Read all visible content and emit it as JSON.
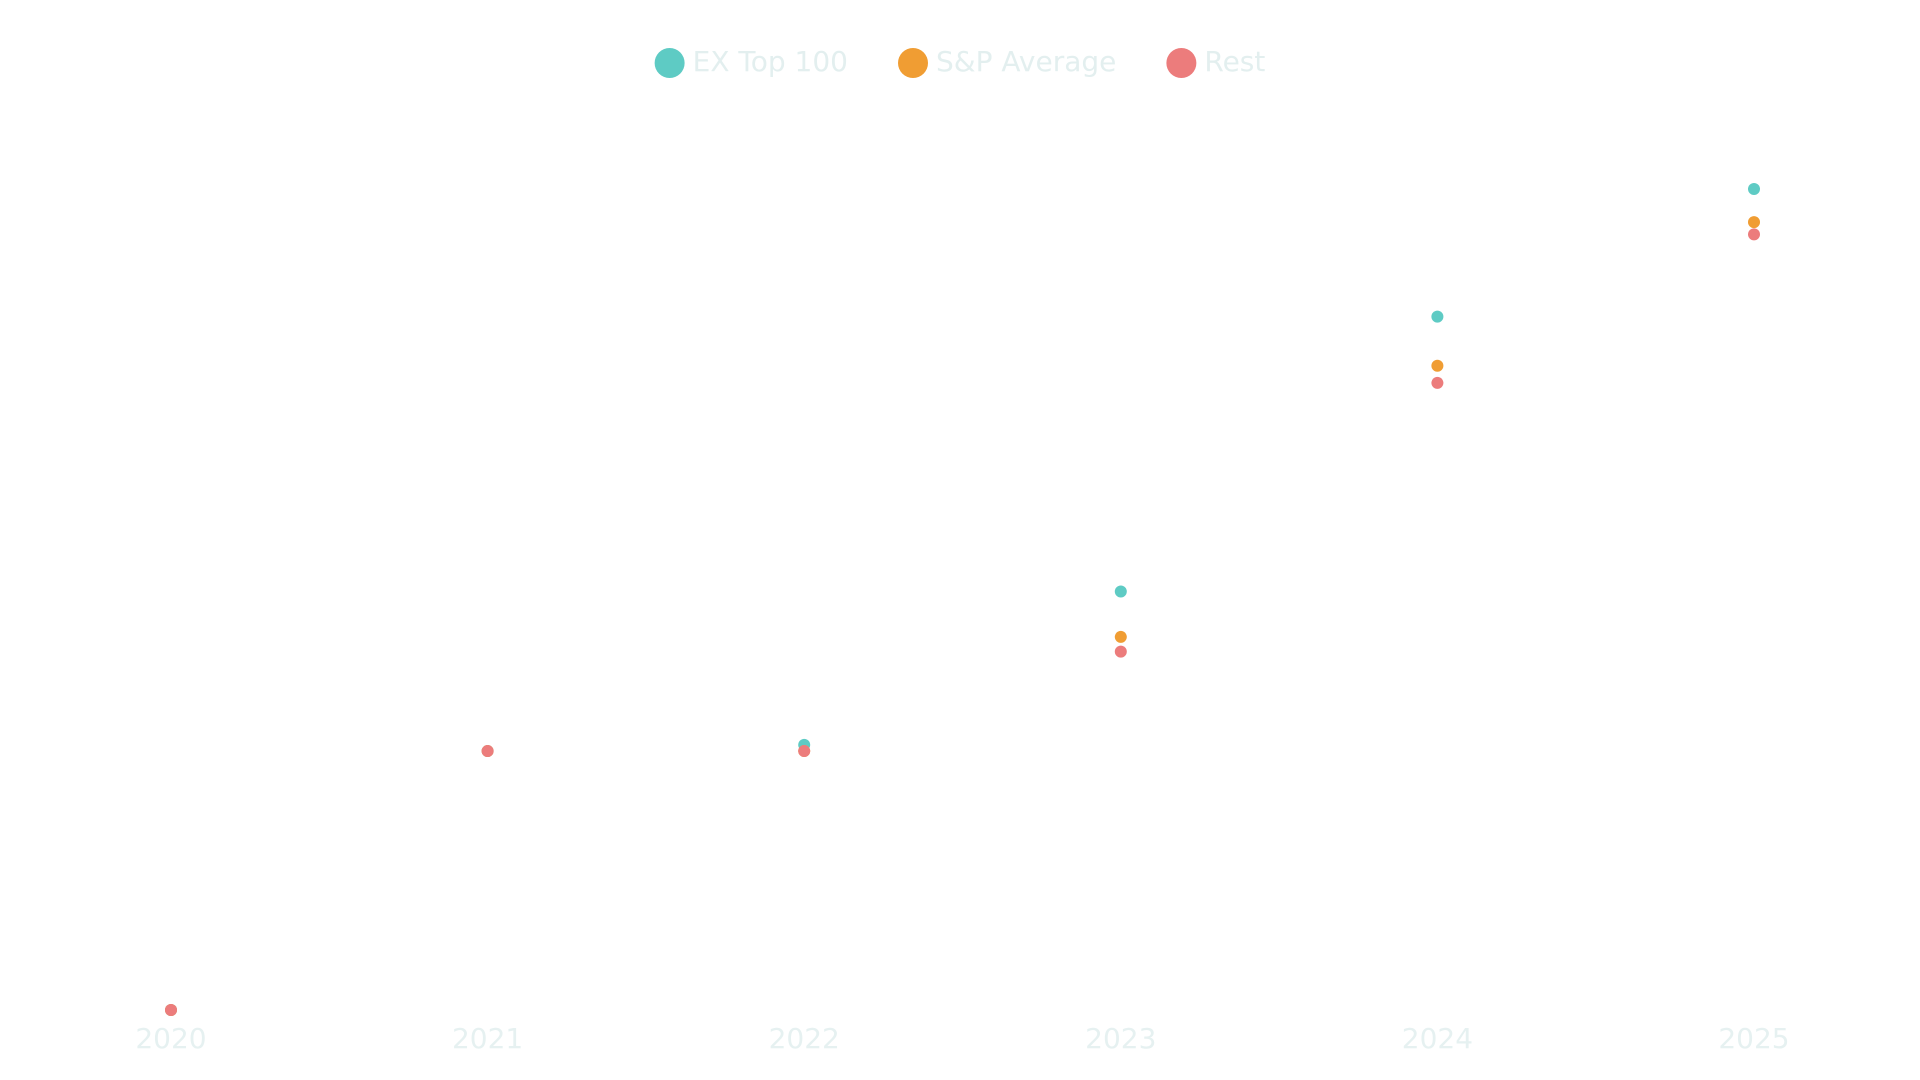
{
  "chart_data": {
    "type": "scatter",
    "categories": [
      "2020",
      "2021",
      "2022",
      "2023",
      "2024",
      "2025"
    ],
    "series": [
      {
        "name": "EX Top 100",
        "color": "#5ecbc4",
        "values": [
          0,
          21.1,
          21.6,
          34.1,
          56.5,
          66.9
        ]
      },
      {
        "name": "S&P Average",
        "color": "#f09d33",
        "values": [
          0,
          21.1,
          21.1,
          30.4,
          52.5,
          64.2
        ]
      },
      {
        "name": "Rest",
        "color": "#ec7c7c",
        "values": [
          0,
          21.1,
          21.1,
          29.2,
          51.1,
          63.2
        ]
      }
    ],
    "legend": "top"
  }
}
